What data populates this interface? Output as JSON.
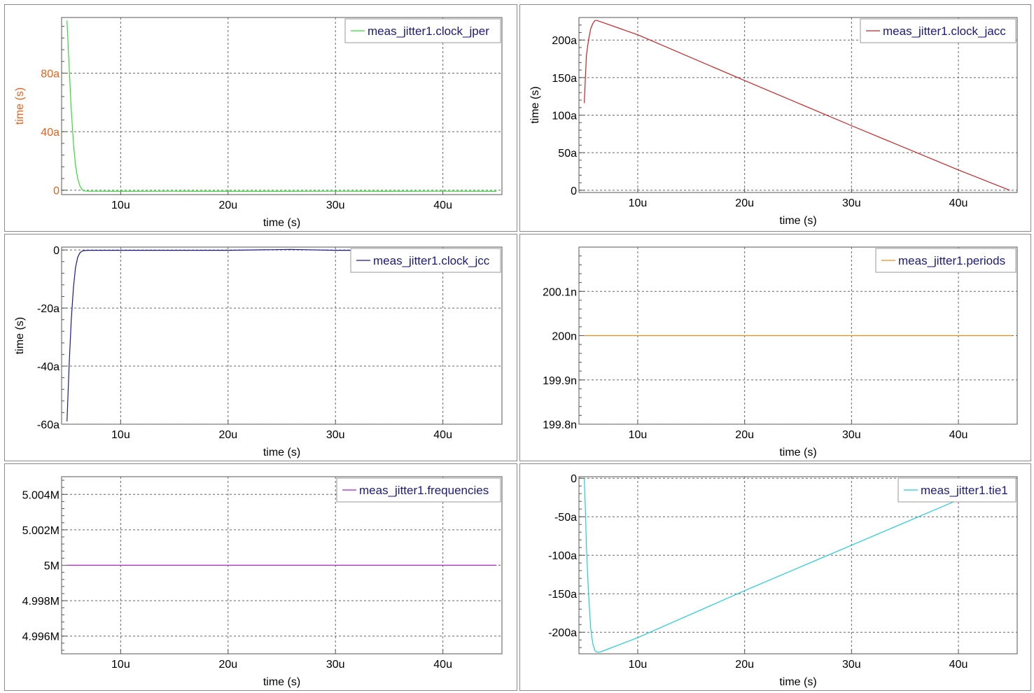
{
  "chart_data": [
    {
      "type": "line",
      "title": "",
      "xlabel": "time (s)",
      "ylabel": "time (s)",
      "ylabel_color": "#e8601c",
      "ytick_color": "#e8601c",
      "xlim": [
        4.5,
        45.5
      ],
      "ylim": [
        -3,
        118
      ],
      "xticks": [
        10,
        20,
        30,
        40
      ],
      "xtick_labels": [
        "10u",
        "20u",
        "30u",
        "40u"
      ],
      "yticks": [
        0,
        40,
        80
      ],
      "ytick_labels": [
        "0",
        "40a",
        "80a"
      ],
      "legend_position": "top-right",
      "series": [
        {
          "name": "meas_jitter1.clock_jper",
          "color": "#33dd33",
          "x": [
            5.0,
            5.2,
            5.4,
            5.6,
            5.8,
            6.0,
            6.2,
            6.4,
            6.6,
            7,
            10,
            15,
            20,
            25,
            30,
            35,
            40,
            45
          ],
          "y": [
            116,
            85,
            55,
            32,
            17,
            8,
            3,
            0.5,
            -0.5,
            -0.7,
            -0.8,
            -0.7,
            -0.8,
            -0.8,
            -0.7,
            -0.8,
            -0.7,
            -0.8
          ]
        }
      ]
    },
    {
      "type": "line",
      "title": "",
      "xlabel": "time (s)",
      "ylabel": "time (s)",
      "xlim": [
        4.5,
        45.5
      ],
      "ylim": [
        -3,
        230
      ],
      "xticks": [
        10,
        20,
        30,
        40
      ],
      "xtick_labels": [
        "10u",
        "20u",
        "30u",
        "40u"
      ],
      "yticks": [
        0,
        50,
        100,
        150,
        200
      ],
      "ytick_labels": [
        "0",
        "50a",
        "100a",
        "150a",
        "200a"
      ],
      "legend_position": "top-right",
      "series": [
        {
          "name": "meas_jitter1.clock_jacc",
          "color": "#cc2222",
          "x": [
            5.0,
            5.1,
            5.2,
            5.4,
            5.6,
            5.8,
            6.0,
            6.2,
            6.4,
            6.6,
            7,
            10,
            20,
            30,
            40,
            44.8
          ],
          "y": [
            116,
            150,
            180,
            200,
            215,
            222,
            226,
            226,
            225,
            224,
            222,
            207,
            146,
            86,
            27,
            0
          ]
        }
      ]
    },
    {
      "type": "line",
      "title": "",
      "xlabel": "time (s)",
      "ylabel": "time (s)",
      "xlim": [
        4.5,
        45.5
      ],
      "ylim": [
        -60,
        1
      ],
      "xticks": [
        10,
        20,
        30,
        40
      ],
      "xtick_labels": [
        "10u",
        "20u",
        "30u",
        "40u"
      ],
      "yticks": [
        -60,
        -40,
        -20,
        0
      ],
      "ytick_labels": [
        "-60a",
        "-40a",
        "-20a",
        "0"
      ],
      "legend_position": "top-right",
      "series": [
        {
          "name": "meas_jitter1.clock_jcc",
          "color": "#1a1a8c",
          "x": [
            5.0,
            5.2,
            5.4,
            5.6,
            5.8,
            6.0,
            6.2,
            6.4,
            6.6,
            7,
            10,
            20,
            25.8,
            30,
            40,
            45
          ],
          "y": [
            -59,
            -40,
            -24,
            -13,
            -6,
            -2.5,
            -1,
            -0.4,
            -0.2,
            -0.1,
            -0.1,
            -0.1,
            0.2,
            -0.1,
            -0.1,
            -0.1
          ]
        }
      ]
    },
    {
      "type": "line",
      "title": "",
      "xlabel": "time (s)",
      "ylabel": "",
      "xlim": [
        4.5,
        45.5
      ],
      "ylim": [
        199.8,
        200.2
      ],
      "xticks": [
        10,
        20,
        30,
        40
      ],
      "xtick_labels": [
        "10u",
        "20u",
        "30u",
        "40u"
      ],
      "yticks": [
        199.8,
        199.9,
        200.0,
        200.1
      ],
      "ytick_labels": [
        "199.8n",
        "199.9n",
        "200n",
        "200.1n"
      ],
      "legend_position": "top-right",
      "series": [
        {
          "name": "meas_jitter1.periods",
          "color": "#ee8a1a",
          "x": [
            5.0,
            45.0
          ],
          "y": [
            200.0,
            200.0
          ]
        }
      ]
    },
    {
      "type": "line",
      "title": "",
      "xlabel": "time (s)",
      "ylabel": "",
      "xlim": [
        4.5,
        45.5
      ],
      "ylim": [
        4.995,
        5.005
      ],
      "xticks": [
        10,
        20,
        30,
        40
      ],
      "xtick_labels": [
        "10u",
        "20u",
        "30u",
        "40u"
      ],
      "yticks": [
        4.996,
        4.998,
        5.0,
        5.002,
        5.004
      ],
      "ytick_labels": [
        "4.996M",
        "4.998M",
        "5M",
        "5.002M",
        "5.004M"
      ],
      "legend_position": "top-right",
      "series": [
        {
          "name": "meas_jitter1.frequencies",
          "color": "#aa22cc",
          "x": [
            5.0,
            45.0
          ],
          "y": [
            5.0,
            5.0
          ]
        }
      ]
    },
    {
      "type": "line",
      "title": "",
      "xlabel": "time (s)",
      "ylabel": "",
      "xlim": [
        4.5,
        45.5
      ],
      "ylim": [
        -228,
        2
      ],
      "xticks": [
        10,
        20,
        30,
        40
      ],
      "xtick_labels": [
        "10u",
        "20u",
        "30u",
        "40u"
      ],
      "yticks": [
        -200,
        -150,
        -100,
        -50,
        0
      ],
      "ytick_labels": [
        "-200a",
        "-150a",
        "-100a",
        "-50a",
        "0"
      ],
      "legend_position": "top-right",
      "series": [
        {
          "name": "meas_jitter1.tie1",
          "color": "#22ccdd",
          "x": [
            5.0,
            5.1,
            5.2,
            5.4,
            5.6,
            5.8,
            6.0,
            6.2,
            6.4,
            6.6,
            7,
            10,
            20,
            30,
            40
          ],
          "y": [
            0,
            -40,
            -90,
            -150,
            -195,
            -215,
            -224,
            -226,
            -226,
            -225,
            -223,
            -207,
            -146,
            -87,
            -28
          ]
        }
      ]
    }
  ]
}
